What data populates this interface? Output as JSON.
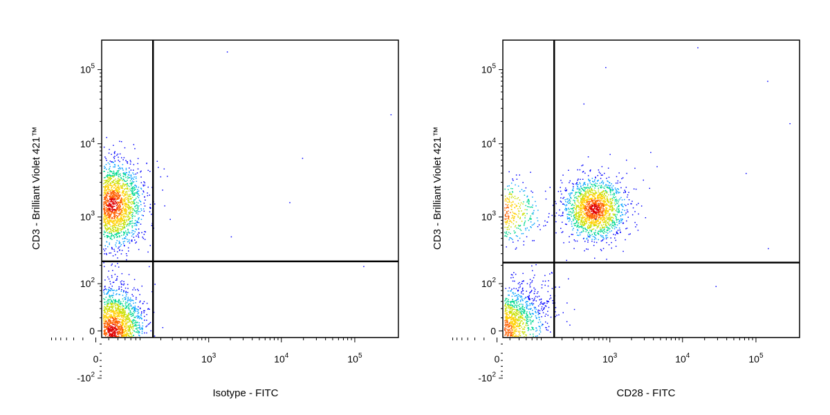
{
  "chart_data": [
    {
      "type": "scatter",
      "subtype": "flow-cytometry-density-dot-plot",
      "xlabel": "Isotype - FITC",
      "ylabel": "CD3 - Brilliant Violet 421™",
      "x_scale": "biexponential",
      "y_scale": "biexponential",
      "x_tick_labels": [
        {
          "base": "0",
          "exp": ""
        },
        {
          "base": "10",
          "exp": "3"
        },
        {
          "base": "10",
          "exp": "4"
        },
        {
          "base": "10",
          "exp": "5"
        }
      ],
      "y_tick_labels": [
        {
          "base": "10",
          "exp": "5"
        },
        {
          "base": "10",
          "exp": "4"
        },
        {
          "base": "10",
          "exp": "3"
        },
        {
          "base": "10",
          "exp": "2"
        },
        {
          "base": "0",
          "exp": ""
        },
        {
          "base": "-10",
          "exp": "2"
        }
      ],
      "quadrant_gate": {
        "x": 150,
        "y": 230
      },
      "grid": false,
      "legend": "none",
      "density_colors": [
        "#0000ff",
        "#00a0ff",
        "#00d890",
        "#c8e000",
        "#ffd000",
        "#ff6000",
        "#e00000"
      ],
      "populations": [
        {
          "x_center": 20,
          "y_center": 1500,
          "cells": 2200
        },
        {
          "x_center": 20,
          "y_center": 0,
          "cells": 2600
        }
      ]
    },
    {
      "type": "scatter",
      "subtype": "flow-cytometry-density-dot-plot",
      "xlabel": "CD28 - FITC",
      "ylabel": "CD3 - Brilliant Violet 421™",
      "x_scale": "biexponential",
      "y_scale": "biexponential",
      "x_tick_labels": [
        {
          "base": "0",
          "exp": ""
        },
        {
          "base": "10",
          "exp": "3"
        },
        {
          "base": "10",
          "exp": "4"
        },
        {
          "base": "10",
          "exp": "5"
        }
      ],
      "y_tick_labels": [
        {
          "base": "10",
          "exp": "5"
        },
        {
          "base": "10",
          "exp": "4"
        },
        {
          "base": "10",
          "exp": "3"
        },
        {
          "base": "10",
          "exp": "2"
        },
        {
          "base": "0",
          "exp": ""
        },
        {
          "base": "-10",
          "exp": "2"
        }
      ],
      "quadrant_gate": {
        "x": 150,
        "y": 220
      },
      "grid": false,
      "legend": "none",
      "density_colors": [
        "#0000ff",
        "#00a0ff",
        "#00d890",
        "#c8e000",
        "#ffd000",
        "#ff6000",
        "#e00000"
      ],
      "populations": [
        {
          "x_center": 0,
          "y_center": 1200,
          "cells": 700
        },
        {
          "x_center": 600,
          "y_center": 1300,
          "cells": 1700
        },
        {
          "x_center": 0,
          "y_center": 0,
          "cells": 2600
        }
      ]
    }
  ]
}
